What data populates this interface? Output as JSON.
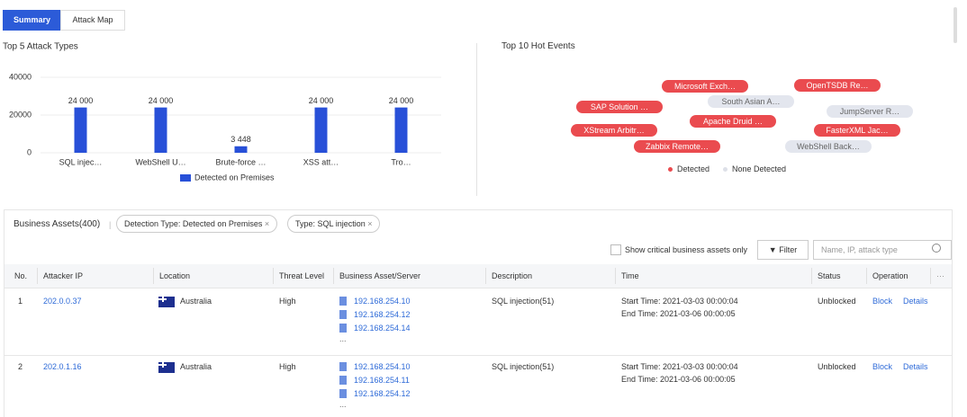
{
  "tabs": [
    "Summary",
    "Attack Map"
  ],
  "chart_data": {
    "type": "bar",
    "title": "Top 5 Attack Types",
    "categories": [
      "SQL injec…",
      "WebShell U…",
      "Brute-force …",
      "XSS att…",
      "Tro…"
    ],
    "series": [
      {
        "name": "Detected on Premises",
        "color": "#2850d8",
        "values": [
          24000,
          24000,
          3448,
          24000,
          24000
        ],
        "value_labels": [
          "24 000",
          "24 000",
          "3 448",
          "24 000",
          "24 000"
        ]
      }
    ],
    "ylim": [
      0,
      40000
    ],
    "yticks": [
      0,
      20000,
      40000
    ],
    "grid": true
  },
  "hot_events": {
    "title": "Top 10 Hot Events",
    "legend": [
      "Detected",
      "None Detected"
    ],
    "items": [
      {
        "label": "Microsoft Exch…",
        "detected": true
      },
      {
        "label": "OpenTSDB Re…",
        "detected": true
      },
      {
        "label": "South Asian A…",
        "detected": false
      },
      {
        "label": "SAP Solution …",
        "detected": true
      },
      {
        "label": "JumpServer R…",
        "detected": false
      },
      {
        "label": "Apache Druid …",
        "detected": true
      },
      {
        "label": "XStream Arbitr…",
        "detected": true
      },
      {
        "label": "FasterXML Jac…",
        "detected": true
      },
      {
        "label": "Zabbix Remote…",
        "detected": true
      },
      {
        "label": "WebShell Back…",
        "detected": false
      }
    ]
  },
  "assets": {
    "title": "Business Assets(400)",
    "filters": [
      "Detection Type: Detected on Premises",
      "Type: SQL injection"
    ],
    "checkbox": "Show critical business assets only",
    "filter_button": "Filter",
    "search_placeholder": "Name, IP, attack type",
    "columns": [
      "No.",
      "Attacker IP",
      "Location",
      "Threat Level",
      "Business Asset/Server",
      "Description",
      "Time",
      "Status",
      "Operation"
    ],
    "rows": [
      {
        "no": 1,
        "ip": "202.0.0.37",
        "location": "Australia",
        "threat": "High",
        "servers": [
          "192.168.254.10",
          "192.168.254.12",
          "192.168.254.14"
        ],
        "more": "...",
        "description": "SQL injection(51)",
        "start": "Start Time: 2021-03-03 00:00:04",
        "end": "End Time: 2021-03-06 00:00:05",
        "status": "Unblocked",
        "actions": [
          "Block",
          "Details"
        ]
      },
      {
        "no": 2,
        "ip": "202.0.1.16",
        "location": "Australia",
        "threat": "High",
        "servers": [
          "192.168.254.10",
          "192.168.254.11",
          "192.168.254.12"
        ],
        "more": "...",
        "description": "SQL injection(51)",
        "start": "Start Time: 2021-03-03 00:00:04",
        "end": "End Time: 2021-03-06 00:00:05",
        "status": "Unblocked",
        "actions": [
          "Block",
          "Details"
        ]
      }
    ]
  }
}
